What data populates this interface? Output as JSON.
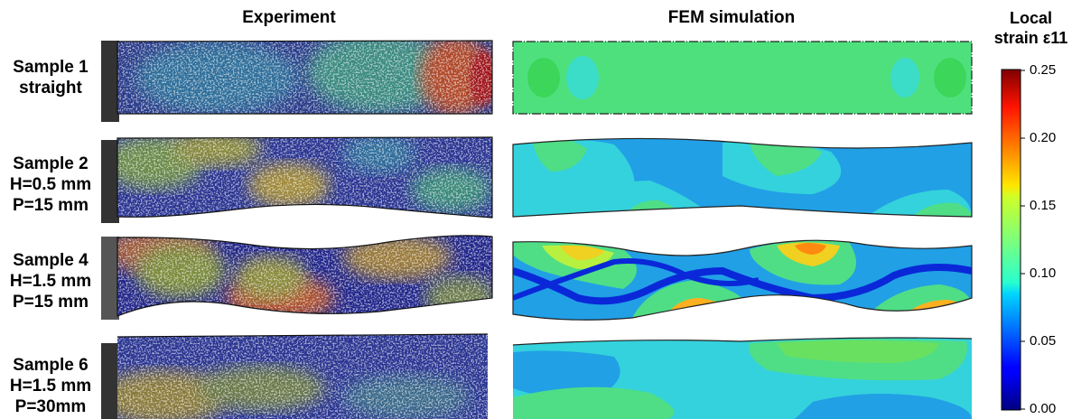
{
  "headers": {
    "experiment": "Experiment",
    "fem": "FEM simulation"
  },
  "rows": [
    {
      "line1": "Sample 1",
      "line2": "straight",
      "line3": ""
    },
    {
      "line1": "Sample 2",
      "line2": "H=0.5 mm",
      "line3": "P=15 mm"
    },
    {
      "line1": "Sample 4",
      "line2": "H=1.5 mm",
      "line3": "P=15 mm"
    },
    {
      "line1": "Sample 6",
      "line2": "H=1.5 mm",
      "line3": "P=30mm"
    }
  ],
  "colorbar": {
    "title_line1": "Local",
    "title_line2": "strain ε11",
    "min": 0.0,
    "max": 0.25,
    "colormap": "jet",
    "ticks": [
      "0.25",
      "0.20",
      "0.15",
      "0.10",
      "0.05",
      "0.00"
    ]
  },
  "colors": {
    "jet_low": "#00007f",
    "jet_mid": "#7fff7f",
    "jet_high": "#7f0000"
  }
}
